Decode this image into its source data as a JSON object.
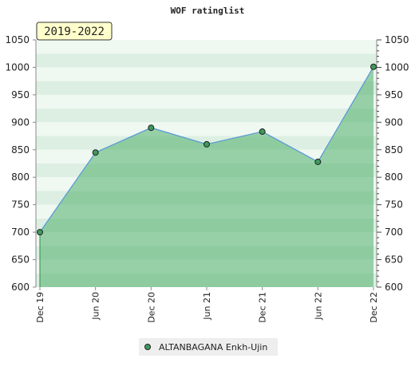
{
  "chart_data": {
    "type": "area",
    "title": "WOF ratinglist",
    "period_label": "2019-2022",
    "categories": [
      "Dec 19",
      "Jun 20",
      "Dec 20",
      "Jun 21",
      "Dec 21",
      "Jun 22",
      "Dec 22"
    ],
    "series": [
      {
        "name": "ALTANBAGANA Enkh-Ujin",
        "color": "#5b9bd5",
        "marker_color": "#3f9a5c",
        "fill": "#4fae6a",
        "values": [
          700,
          845,
          890,
          860,
          883,
          828,
          1001
        ]
      }
    ],
    "ylim": [
      600,
      1050
    ],
    "yticks": [
      600,
      650,
      700,
      750,
      800,
      850,
      900,
      950,
      1000,
      1050
    ],
    "y2lim": [
      600,
      1050
    ],
    "y2ticks": [
      600,
      650,
      700,
      750,
      800,
      850,
      900,
      950,
      1000,
      1050
    ]
  }
}
